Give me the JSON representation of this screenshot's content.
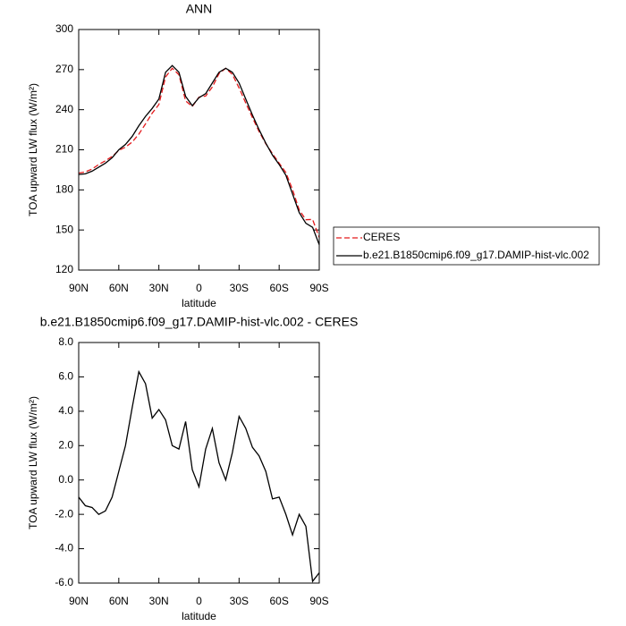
{
  "chart_data": [
    {
      "type": "line",
      "title": "ANN",
      "xlabel": "latitude",
      "ylabel": "TOA upward LW flux (W/m²)",
      "x": [
        90,
        85,
        80,
        75,
        70,
        65,
        60,
        55,
        50,
        45,
        40,
        35,
        30,
        25,
        20,
        15,
        10,
        5,
        0,
        -5,
        -10,
        -15,
        -20,
        -25,
        -30,
        -35,
        -40,
        -45,
        -50,
        -55,
        -60,
        -65,
        -70,
        -75,
        -80,
        -85,
        -90
      ],
      "series": [
        {
          "name": "CERES",
          "color": "#e41a1c",
          "line_style": "dashed",
          "values": [
            192.5,
            193.5,
            195.6,
            199,
            201.8,
            205,
            209.5,
            212,
            215.8,
            221.7,
            229.4,
            237.4,
            243.9,
            264.5,
            271,
            266.2,
            246.6,
            242.4,
            249.4,
            250.2,
            257,
            267,
            271,
            266.4,
            256.3,
            245,
            234.1,
            223.6,
            214.5,
            207.1,
            200,
            193,
            180.2,
            165,
            157.7,
            157.9,
            144.4
          ]
        },
        {
          "name": "b.e21.B1850cmip6.f09_g17.DAMIP-hist-vlc.002",
          "color": "#000000",
          "line_style": "solid",
          "values": [
            191.5,
            192,
            194,
            197,
            200,
            204,
            210,
            214,
            220,
            228,
            235,
            241,
            248,
            268,
            273,
            268,
            250,
            243,
            249,
            252,
            260,
            268,
            271,
            268,
            260,
            248,
            236,
            225,
            215,
            206,
            199,
            191,
            177,
            163,
            155,
            152,
            139
          ]
        }
      ],
      "xlim": [
        90,
        -90
      ],
      "xticks": [
        {
          "value": 90,
          "label": "90N"
        },
        {
          "value": 60,
          "label": "60N"
        },
        {
          "value": 30,
          "label": "30N"
        },
        0,
        {
          "value": -30,
          "label": "30S"
        },
        {
          "value": -60,
          "label": "60S"
        },
        {
          "value": -90,
          "label": "90S"
        }
      ],
      "ylim": [
        120,
        300
      ],
      "yticks": [
        120,
        150,
        180,
        210,
        240,
        270,
        300
      ],
      "legend": "right"
    },
    {
      "type": "line",
      "title": "b.e21.B1850cmip6.f09_g17.DAMIP-hist-vlc.002 - CERES",
      "xlabel": "latitude",
      "ylabel": "TOA upward LW flux (W/m²)",
      "x": [
        90,
        85,
        80,
        75,
        70,
        65,
        60,
        55,
        50,
        45,
        40,
        35,
        30,
        25,
        20,
        15,
        10,
        5,
        0,
        -5,
        -10,
        -15,
        -20,
        -25,
        -30,
        -35,
        -40,
        -45,
        -50,
        -55,
        -60,
        -65,
        -70,
        -75,
        -80,
        -85,
        -90
      ],
      "series": [
        {
          "color": "#000000",
          "line_style": "solid",
          "values": [
            -1.0,
            -1.5,
            -1.6,
            -2.0,
            -1.8,
            -1.0,
            0.5,
            2.0,
            4.2,
            6.3,
            5.6,
            3.6,
            4.1,
            3.5,
            2.0,
            1.8,
            3.4,
            0.6,
            -0.4,
            1.8,
            3.0,
            1.0,
            0.0,
            1.6,
            3.7,
            3.0,
            1.9,
            1.4,
            0.5,
            -1.1,
            -1.0,
            -2.0,
            -3.2,
            -2.0,
            -2.7,
            -5.9,
            -5.4
          ]
        }
      ],
      "xlim": [
        90,
        -90
      ],
      "xticks": [
        {
          "value": 90,
          "label": "90N"
        },
        {
          "value": 60,
          "label": "60N"
        },
        {
          "value": 30,
          "label": "30N"
        },
        0,
        {
          "value": -30,
          "label": "30S"
        },
        {
          "value": -60,
          "label": "60S"
        },
        {
          "value": -90,
          "label": "90S"
        }
      ],
      "ylim": [
        -6,
        8
      ],
      "yticks": [
        {
          "value": -6,
          "label": "-6.0"
        },
        {
          "value": -4,
          "label": "-4.0"
        },
        {
          "value": -2,
          "label": "-2.0"
        },
        {
          "value": 0,
          "label": "0.0"
        },
        {
          "value": 2,
          "label": "2.0"
        },
        {
          "value": 4,
          "label": "4.0"
        },
        {
          "value": 6,
          "label": "6.0"
        },
        {
          "value": 8,
          "label": "8.0"
        }
      ]
    }
  ]
}
